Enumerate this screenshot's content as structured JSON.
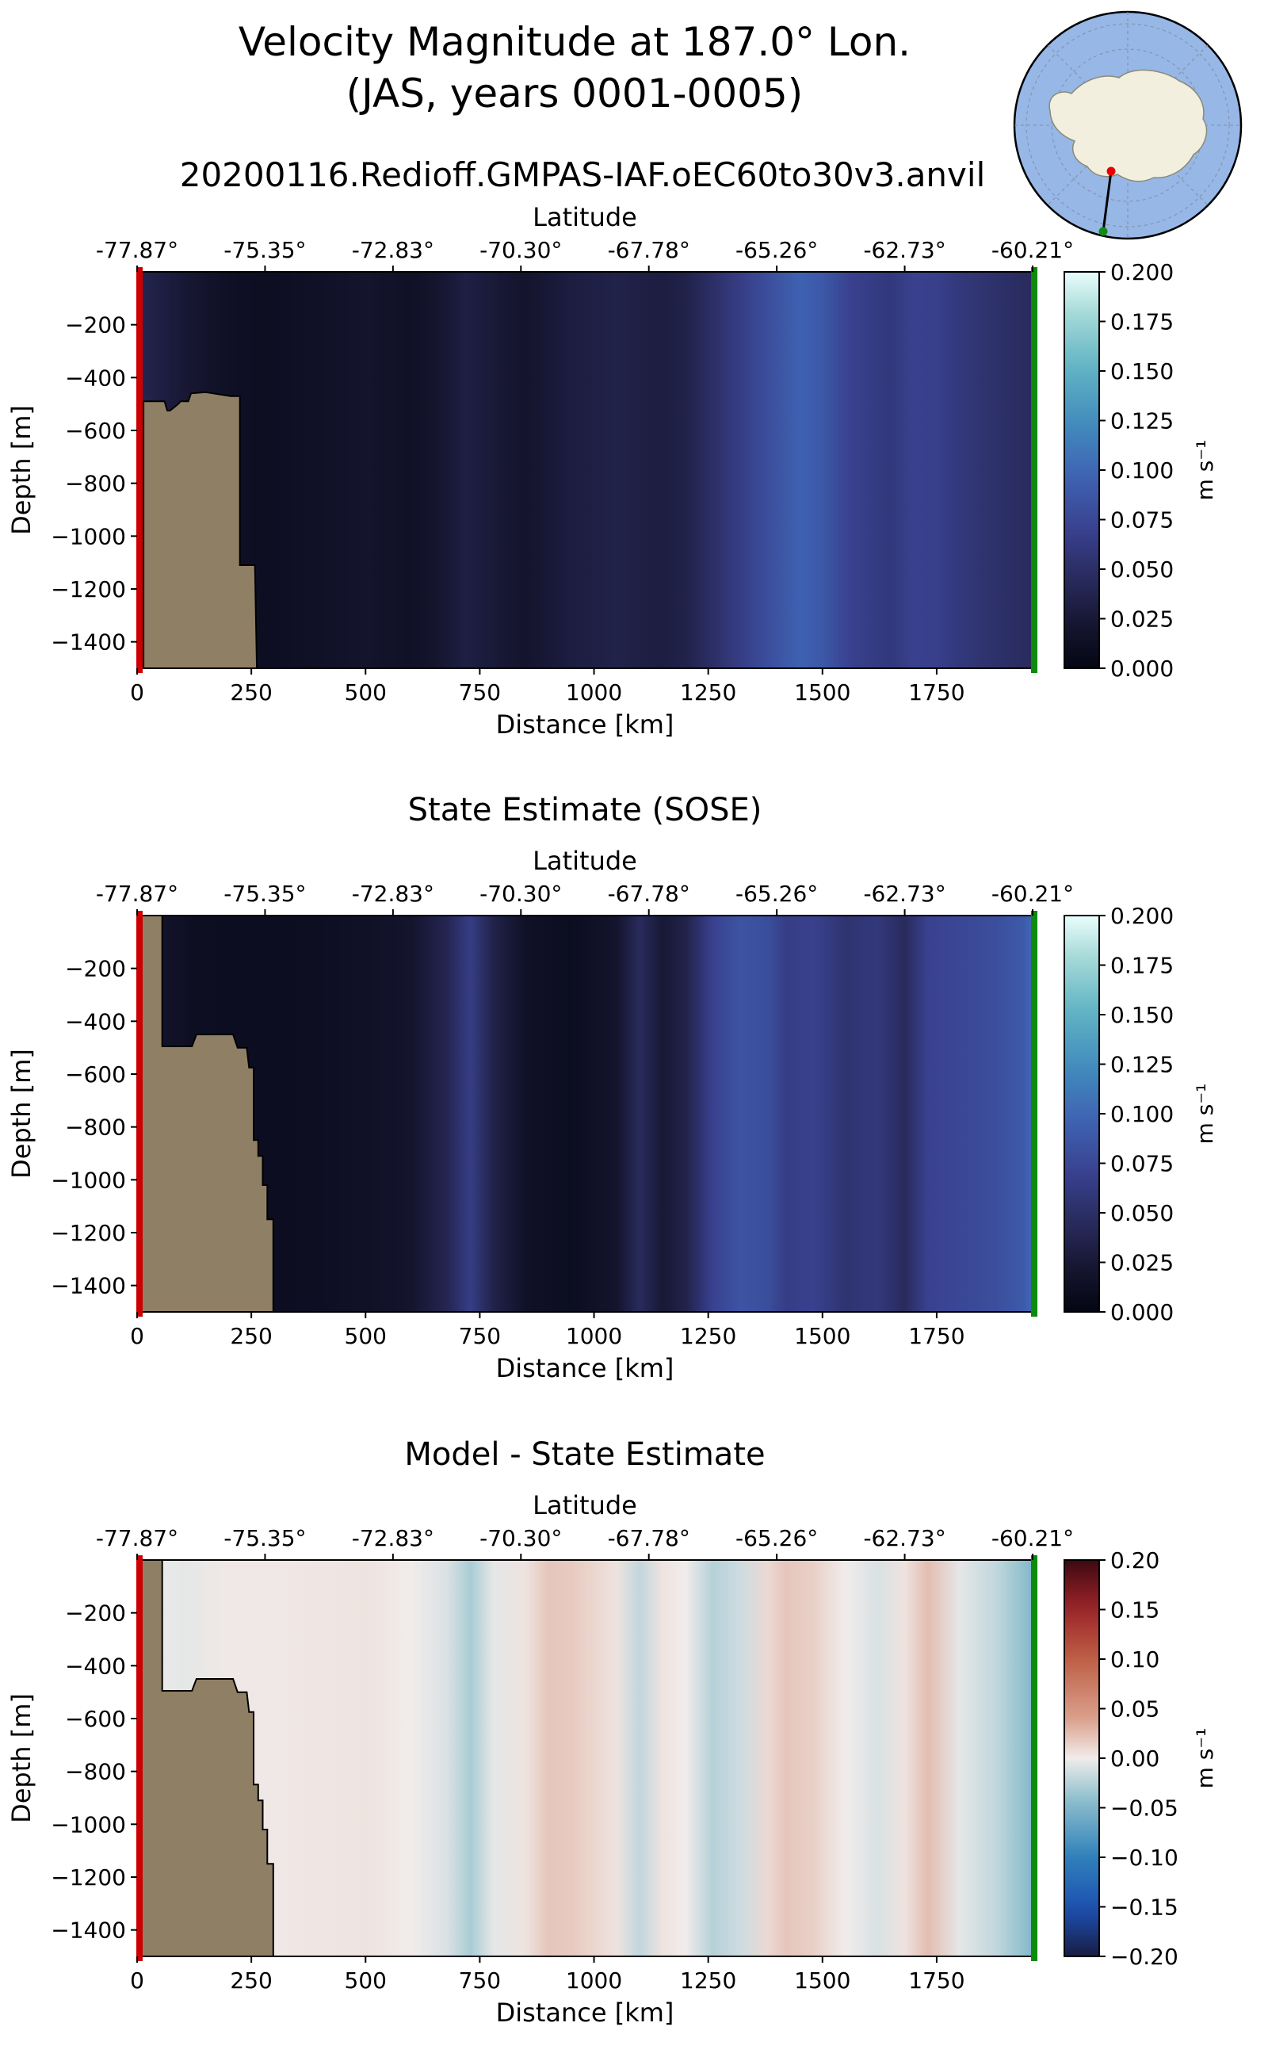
{
  "figure": {
    "title_line1": "Velocity Magnitude at 187.0° Lon.",
    "title_line2": "(JAS, years 0001-0005)",
    "run_name": "20200116.Redioff.GMPAS-IAF.oEC60to30v3.anvil",
    "colors": {
      "land": "#8f7f64",
      "start_marker": "#cc0000",
      "end_marker": "#0b8a0b",
      "inset_ocean": "#97b7e6",
      "inset_land": "#f2efdf"
    }
  },
  "chart_data": [
    {
      "type": "heatmap",
      "title": "",
      "xlabel": "Distance [km]",
      "ylabel": "Depth [m]",
      "top_axis_label": "Latitude",
      "xlim": [
        0,
        1960
      ],
      "ylim": [
        -1500,
        0
      ],
      "x_ticks": [
        0,
        250,
        500,
        750,
        1000,
        1250,
        1500,
        1750
      ],
      "x_tick_labels": [
        "0",
        "250",
        "500",
        "750",
        "1000",
        "1250",
        "1500",
        "1750"
      ],
      "y_ticks": [
        -200,
        -400,
        -600,
        -800,
        -1000,
        -1200,
        -1400
      ],
      "y_tick_labels": [
        "−200",
        "−400",
        "−600",
        "−800",
        "−1000",
        "−1200",
        "−1400"
      ],
      "lat_ticks_km": [
        0,
        280,
        560,
        840,
        1120,
        1400,
        1680,
        1960
      ],
      "lat_tick_labels": [
        "-77.87°",
        "-75.35°",
        "-72.83°",
        "-70.30°",
        "-67.78°",
        "-65.26°",
        "-62.73°",
        "-60.21°"
      ],
      "colormap": "ice",
      "colorbar": {
        "label": "m s⁻¹",
        "range": [
          0.0,
          0.2
        ],
        "ticks": [
          0.0,
          0.025,
          0.05,
          0.075,
          0.1,
          0.125,
          0.15,
          0.175,
          0.2
        ],
        "tick_labels": [
          "0.000",
          "0.025",
          "0.050",
          "0.075",
          "0.100",
          "0.125",
          "0.150",
          "0.175",
          "0.200"
        ]
      },
      "columns": {
        "x_km": [
          0,
          30,
          60,
          120,
          200,
          260,
          300,
          400,
          500,
          600,
          650,
          720,
          760,
          850,
          950,
          1050,
          1150,
          1200,
          1260,
          1320,
          1380,
          1450,
          1500,
          1560,
          1650,
          1700,
          1750,
          1800,
          1850,
          1900,
          1960
        ],
        "speed": [
          0.04,
          0.035,
          0.03,
          0.022,
          0.014,
          0.012,
          0.012,
          0.015,
          0.02,
          0.015,
          0.02,
          0.032,
          0.028,
          0.02,
          0.03,
          0.035,
          0.03,
          0.035,
          0.05,
          0.065,
          0.08,
          0.095,
          0.088,
          0.07,
          0.06,
          0.07,
          0.068,
          0.06,
          0.055,
          0.05,
          0.045
        ]
      },
      "bathymetry": {
        "x_km": [
          0,
          14,
          14,
          60,
          66,
          72,
          90,
          95,
          112,
          118,
          150,
          205,
          208,
          225,
          225,
          237,
          258,
          262
        ],
        "depth_m": [
          -1500,
          -1500,
          -490,
          -490,
          -525,
          -525,
          -500,
          -490,
          -490,
          -460,
          -455,
          -470,
          -470,
          -470,
          -1110,
          -1110,
          -1110,
          -1500
        ]
      }
    },
    {
      "type": "heatmap",
      "title": "State Estimate (SOSE)",
      "xlabel": "Distance [km]",
      "ylabel": "Depth [m]",
      "top_axis_label": "Latitude",
      "xlim": [
        0,
        1960
      ],
      "ylim": [
        -1500,
        0
      ],
      "x_ticks": [
        0,
        250,
        500,
        750,
        1000,
        1250,
        1500,
        1750
      ],
      "x_tick_labels": [
        "0",
        "250",
        "500",
        "750",
        "1000",
        "1250",
        "1500",
        "1750"
      ],
      "y_ticks": [
        -200,
        -400,
        -600,
        -800,
        -1000,
        -1200,
        -1400
      ],
      "y_tick_labels": [
        "−200",
        "−400",
        "−600",
        "−800",
        "−1000",
        "−1200",
        "−1400"
      ],
      "lat_ticks_km": [
        0,
        280,
        560,
        840,
        1120,
        1400,
        1680,
        1960
      ],
      "lat_tick_labels": [
        "-77.87°",
        "-75.35°",
        "-72.83°",
        "-70.30°",
        "-67.78°",
        "-65.26°",
        "-62.73°",
        "-60.21°"
      ],
      "colormap": "ice",
      "colorbar": {
        "label": "m s⁻¹",
        "range": [
          0.0,
          0.2
        ],
        "ticks": [
          0.0,
          0.025,
          0.05,
          0.075,
          0.1,
          0.125,
          0.15,
          0.175,
          0.2
        ],
        "tick_labels": [
          "0.000",
          "0.025",
          "0.050",
          "0.075",
          "0.100",
          "0.125",
          "0.150",
          "0.175",
          "0.200"
        ]
      },
      "columns": {
        "x_km": [
          0,
          60,
          120,
          200,
          300,
          400,
          500,
          600,
          680,
          730,
          780,
          850,
          950,
          1050,
          1100,
          1150,
          1200,
          1260,
          1320,
          1380,
          1420,
          1480,
          1550,
          1620,
          1680,
          1730,
          1800,
          1880,
          1940,
          1960
        ],
        "speed": [
          0.02,
          0.018,
          0.012,
          0.01,
          0.01,
          0.012,
          0.015,
          0.02,
          0.04,
          0.065,
          0.035,
          0.015,
          0.01,
          0.02,
          0.045,
          0.025,
          0.035,
          0.07,
          0.085,
          0.08,
          0.065,
          0.07,
          0.055,
          0.06,
          0.045,
          0.07,
          0.075,
          0.08,
          0.09,
          0.1
        ]
      },
      "bathymetry": {
        "x_km": [
          0,
          55,
          55,
          120,
          130,
          210,
          220,
          240,
          245,
          255,
          255,
          265,
          265,
          275,
          275,
          285,
          285,
          298,
          298
        ],
        "depth_m": [
          0,
          0,
          -495,
          -495,
          -450,
          -450,
          -500,
          -500,
          -575,
          -575,
          -850,
          -850,
          -910,
          -910,
          -1020,
          -1020,
          -1150,
          -1150,
          -1500
        ]
      }
    },
    {
      "type": "heatmap",
      "title": "Model - State Estimate",
      "xlabel": "Distance [km]",
      "ylabel": "Depth [m]",
      "top_axis_label": "Latitude",
      "xlim": [
        0,
        1960
      ],
      "ylim": [
        -1500,
        0
      ],
      "x_ticks": [
        0,
        250,
        500,
        750,
        1000,
        1250,
        1500,
        1750
      ],
      "x_tick_labels": [
        "0",
        "250",
        "500",
        "750",
        "1000",
        "1250",
        "1500",
        "1750"
      ],
      "y_ticks": [
        -200,
        -400,
        -600,
        -800,
        -1000,
        -1200,
        -1400
      ],
      "y_tick_labels": [
        "−200",
        "−400",
        "−600",
        "−800",
        "−1000",
        "−1200",
        "−1400"
      ],
      "lat_ticks_km": [
        0,
        280,
        560,
        840,
        1120,
        1400,
        1680,
        1960
      ],
      "lat_tick_labels": [
        "-77.87°",
        "-75.35°",
        "-72.83°",
        "-70.30°",
        "-67.78°",
        "-65.26°",
        "-62.73°",
        "-60.21°"
      ],
      "colormap": "balance",
      "colorbar": {
        "label": "m s⁻¹",
        "range": [
          -0.2,
          0.2
        ],
        "ticks": [
          -0.2,
          -0.15,
          -0.1,
          -0.05,
          0.0,
          0.05,
          0.1,
          0.15,
          0.2
        ],
        "tick_labels": [
          "−0.20",
          "−0.15",
          "−0.10",
          "−0.05",
          "0.00",
          "0.05",
          "0.10",
          "0.15",
          "0.20"
        ]
      },
      "columns": {
        "x_km": [
          0,
          100,
          200,
          300,
          400,
          500,
          600,
          680,
          730,
          780,
          850,
          900,
          950,
          1050,
          1100,
          1150,
          1200,
          1260,
          1320,
          1380,
          1420,
          1480,
          1550,
          1620,
          1680,
          1730,
          1800,
          1880,
          1940,
          1960
        ],
        "diff": [
          0.0,
          -0.005,
          0.002,
          0.002,
          0.003,
          0.005,
          0.0,
          -0.01,
          -0.03,
          -0.005,
          0.005,
          0.02,
          0.018,
          0.005,
          -0.02,
          0.005,
          0.0,
          -0.025,
          -0.015,
          0.01,
          0.02,
          0.015,
          0.0,
          -0.01,
          0.005,
          0.025,
          -0.005,
          -0.02,
          -0.04,
          -0.05
        ]
      },
      "bathymetry": {
        "x_km": [
          0,
          55,
          55,
          120,
          130,
          210,
          220,
          240,
          245,
          255,
          255,
          265,
          265,
          275,
          275,
          285,
          285,
          298,
          298
        ],
        "depth_m": [
          0,
          0,
          -495,
          -495,
          -450,
          -450,
          -500,
          -500,
          -575,
          -575,
          -850,
          -850,
          -910,
          -910,
          -1020,
          -1020,
          -1150,
          -1150,
          -1500
        ]
      }
    }
  ]
}
